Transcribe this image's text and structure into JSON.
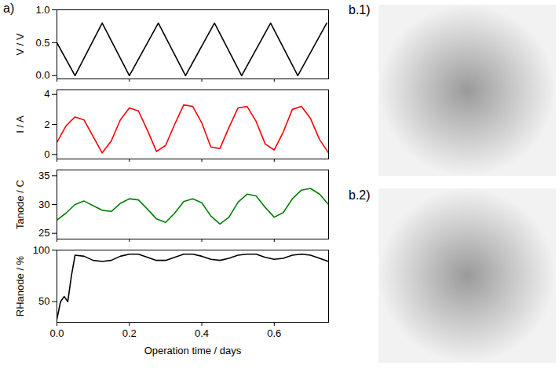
{
  "chart_data": [
    {
      "type": "line",
      "tick_labels": "y",
      "x": [
        0,
        0.05,
        0.125,
        0.2,
        0.28,
        0.355,
        0.435,
        0.51,
        0.59,
        0.665,
        0.745
      ],
      "series": [
        {
          "color": "#000000",
          "values": [
            0.5,
            0,
            0.8,
            0,
            0.8,
            0,
            0.8,
            0,
            0.8,
            0,
            0.8
          ]
        }
      ],
      "ylabel": "V / V",
      "ylim": [
        -0.05,
        1.0
      ],
      "yticks": [
        {
          "value": 0,
          "label": "0.0"
        },
        {
          "value": 0.5,
          "label": "0.5"
        },
        {
          "value": 1,
          "label": "1.0"
        }
      ],
      "xlim": [
        0,
        0.75
      ],
      "xticks": [
        {
          "value": 0,
          "label": "0.0"
        },
        {
          "value": 0.2,
          "label": "0.2"
        },
        {
          "value": 0.4,
          "label": "0.4"
        },
        {
          "value": 0.6,
          "label": "0.6"
        }
      ]
    },
    {
      "type": "line",
      "tick_labels": "y",
      "x": [
        0,
        0.025,
        0.05,
        0.075,
        0.1,
        0.125,
        0.15,
        0.175,
        0.2,
        0.225,
        0.25,
        0.275,
        0.3,
        0.325,
        0.35,
        0.375,
        0.4,
        0.425,
        0.45,
        0.475,
        0.5,
        0.525,
        0.55,
        0.575,
        0.6,
        0.625,
        0.65,
        0.675,
        0.7,
        0.725,
        0.75
      ],
      "series": [
        {
          "color": "#ff0000",
          "values": [
            0.8,
            1.9,
            2.5,
            2.3,
            1.2,
            0.1,
            0.9,
            2.3,
            3.1,
            2.9,
            1.6,
            0.2,
            0.6,
            2.0,
            3.3,
            3.2,
            2.1,
            0.5,
            0.4,
            1.8,
            3.1,
            3.2,
            2.2,
            0.7,
            0.3,
            1.5,
            3.0,
            3.2,
            2.4,
            1.0,
            0.1
          ]
        }
      ],
      "ylabel": "I / A",
      "ylim": [
        -0.3,
        4.3
      ],
      "yticks": [
        0,
        2,
        4
      ],
      "xlim": [
        0,
        0.75
      ],
      "xticks": [
        {
          "value": 0,
          "label": "0.0"
        },
        {
          "value": 0.2,
          "label": "0.2"
        },
        {
          "value": 0.4,
          "label": "0.4"
        },
        {
          "value": 0.6,
          "label": "0.6"
        }
      ]
    },
    {
      "type": "line",
      "tick_labels": "y",
      "x": [
        0,
        0.025,
        0.05,
        0.075,
        0.1,
        0.125,
        0.15,
        0.175,
        0.2,
        0.225,
        0.25,
        0.275,
        0.3,
        0.325,
        0.35,
        0.375,
        0.4,
        0.425,
        0.45,
        0.475,
        0.5,
        0.525,
        0.55,
        0.575,
        0.6,
        0.625,
        0.65,
        0.675,
        0.7,
        0.725,
        0.75
      ],
      "series": [
        {
          "color": "#008000",
          "values": [
            27.3,
            28.5,
            30.0,
            30.6,
            29.8,
            29.0,
            28.8,
            30.2,
            31.0,
            30.8,
            29.2,
            27.5,
            26.9,
            28.5,
            30.5,
            31.0,
            30.3,
            28.0,
            26.6,
            27.8,
            30.4,
            31.8,
            31.5,
            29.5,
            27.8,
            28.6,
            31.0,
            32.5,
            32.8,
            31.8,
            30.0
          ]
        }
      ],
      "ylabel": "Tanode / C",
      "ylim": [
        24,
        36
      ],
      "yticks": [
        25,
        30,
        35
      ],
      "xlim": [
        0,
        0.75
      ],
      "xticks": [
        {
          "value": 0,
          "label": "0.0"
        },
        {
          "value": 0.2,
          "label": "0.2"
        },
        {
          "value": 0.4,
          "label": "0.4"
        },
        {
          "value": 0.6,
          "label": "0.6"
        }
      ]
    },
    {
      "type": "line",
      "x": [
        0,
        0.01,
        0.02,
        0.03,
        0.04,
        0.05,
        0.075,
        0.1,
        0.125,
        0.15,
        0.175,
        0.2,
        0.225,
        0.25,
        0.275,
        0.3,
        0.325,
        0.35,
        0.375,
        0.4,
        0.425,
        0.45,
        0.475,
        0.5,
        0.525,
        0.55,
        0.575,
        0.6,
        0.625,
        0.65,
        0.675,
        0.7,
        0.725,
        0.75
      ],
      "series": [
        {
          "color": "#000000",
          "values": [
            33,
            50,
            55,
            50,
            75,
            95,
            94,
            90,
            89,
            90,
            94,
            96,
            96,
            93,
            90,
            90,
            93,
            96,
            96,
            94,
            91,
            90,
            92,
            95,
            96,
            96,
            93,
            91,
            92,
            95,
            96,
            95,
            92,
            89
          ]
        }
      ],
      "ylabel": "RHanode / %",
      "ylim": [
        30,
        100
      ],
      "yticks": [
        50,
        100
      ],
      "xlabel": "Operation time / days",
      "xlim": [
        0,
        0.75
      ],
      "xticks": [
        {
          "value": 0,
          "label": "0.0"
        },
        {
          "value": 0.2,
          "label": "0.2"
        },
        {
          "value": 0.4,
          "label": "0.4"
        },
        {
          "value": 0.6,
          "label": "0.6"
        }
      ]
    }
  ],
  "panel_labels": {
    "a": "a)",
    "b1": "b.1)",
    "b2": "b.2)"
  }
}
